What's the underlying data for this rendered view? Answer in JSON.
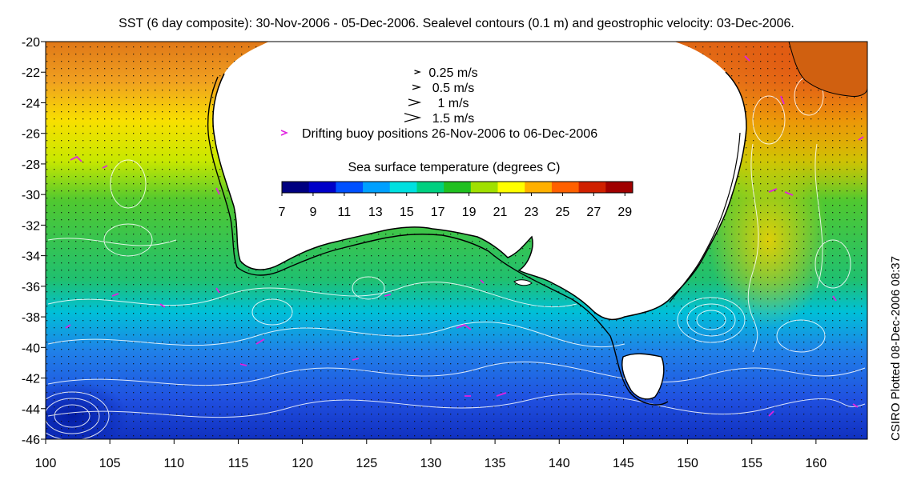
{
  "title": "SST (6 day composite): 30-Nov-2006 - 05-Dec-2006. Sealevel contours (0.1 m) and geostrophic velocity: 03-Dec-2006.",
  "credit": "CSIRO Plotted 08-Dec-2006 08:37",
  "map": {
    "lon_range": [
      100,
      164
    ],
    "lat_range": [
      -46,
      -20
    ],
    "x_ticks": [
      100,
      105,
      110,
      115,
      120,
      125,
      130,
      135,
      140,
      145,
      150,
      155,
      160
    ],
    "y_ticks": [
      -20,
      -22,
      -24,
      -26,
      -28,
      -30,
      -32,
      -34,
      -36,
      -38,
      -40,
      -42,
      -44,
      -46
    ]
  },
  "legend": {
    "velocity": [
      {
        "speed": 0.25,
        "label": "0.25 m/s"
      },
      {
        "speed": 0.5,
        "label": "0.5 m/s"
      },
      {
        "speed": 1.0,
        "label": "1 m/s"
      },
      {
        "speed": 1.5,
        "label": "1.5 m/s"
      }
    ],
    "buoy_label": "Drifting buoy positions 26-Nov-2006 to 06-Dec-2006",
    "buoy_color": "#e020e0"
  },
  "colorbar": {
    "title": "Sea surface temperature (degrees C)",
    "min": 7,
    "max": 29.5,
    "ticks": [
      7,
      9,
      11,
      13,
      15,
      17,
      19,
      21,
      23,
      25,
      27,
      29
    ],
    "colors": [
      "#000080",
      "#0000c8",
      "#0050ff",
      "#00a0ff",
      "#00e0e0",
      "#00d080",
      "#20c020",
      "#a0e000",
      "#ffff00",
      "#ffb000",
      "#ff6000",
      "#d02000",
      "#a00000"
    ]
  }
}
